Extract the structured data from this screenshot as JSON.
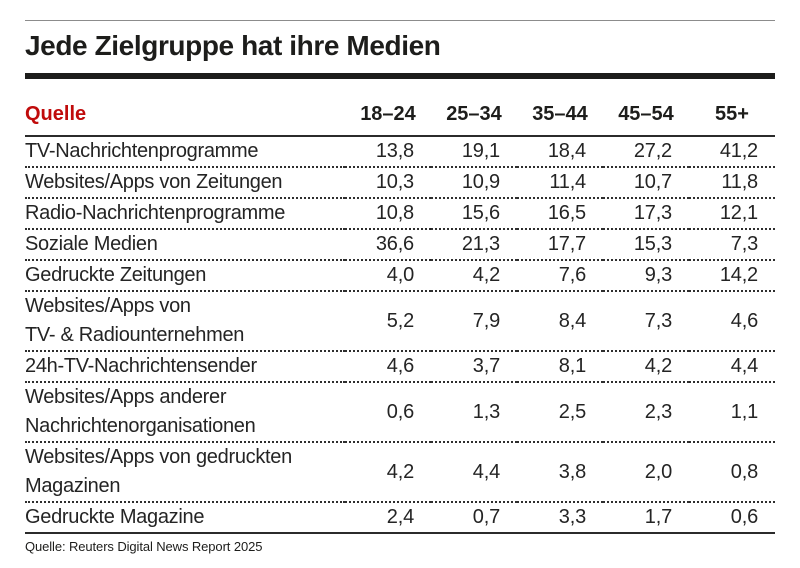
{
  "header": {
    "title": "Jede Zielgruppe hat ihre Medien"
  },
  "table": {
    "source_column_header": "Quelle",
    "age_groups": [
      "18–24",
      "25–34",
      "35–44",
      "45–54",
      "55+"
    ],
    "rows": [
      {
        "label_lines": [
          "TV-Nachrichtenprogramme"
        ],
        "values": [
          "13,8",
          "19,1",
          "18,4",
          "27,2",
          "41,2"
        ]
      },
      {
        "label_lines": [
          "Websites/Apps von Zeitungen"
        ],
        "values": [
          "10,3",
          "10,9",
          "11,4",
          "10,7",
          "11,8"
        ]
      },
      {
        "label_lines": [
          "Radio-Nachrichtenprogramme"
        ],
        "values": [
          "10,8",
          "15,6",
          "16,5",
          "17,3",
          "12,1"
        ]
      },
      {
        "label_lines": [
          "Soziale Medien"
        ],
        "values": [
          "36,6",
          "21,3",
          "17,7",
          "15,3",
          "7,3"
        ]
      },
      {
        "label_lines": [
          "Gedruckte Zeitungen"
        ],
        "values": [
          "4,0",
          "4,2",
          "7,6",
          "9,3",
          "14,2"
        ]
      },
      {
        "label_lines": [
          "Websites/Apps von",
          "TV- & Radiounternehmen"
        ],
        "values": [
          "5,2",
          "7,9",
          "8,4",
          "7,3",
          "4,6"
        ]
      },
      {
        "label_lines": [
          "24h-TV-Nachrichtensender"
        ],
        "values": [
          "4,6",
          "3,7",
          "8,1",
          "4,2",
          "4,4"
        ]
      },
      {
        "label_lines": [
          "Websites/Apps anderer",
          "Nachrichtenorganisationen"
        ],
        "values": [
          "0,6",
          "1,3",
          "2,5",
          "2,3",
          "1,1"
        ]
      },
      {
        "label_lines": [
          "Websites/Apps von gedruckten",
          "Magazinen"
        ],
        "values": [
          "4,2",
          "4,4",
          "3,8",
          "2,0",
          "0,8"
        ]
      },
      {
        "label_lines": [
          "Gedruckte Magazine"
        ],
        "values": [
          "2,4",
          "0,7",
          "3,3",
          "1,7",
          "0,6"
        ]
      }
    ]
  },
  "footer": {
    "source": "Quelle: Reuters Digital News Report 2025"
  },
  "colors": {
    "accent_red": "#c00b0b",
    "title_black": "#1d1d1b",
    "body_text": "#242424",
    "thin_rule_gray": "#8c8c8c"
  },
  "chart_data": {
    "type": "table",
    "title": "Jede Zielgruppe hat ihre Medien",
    "categories": [
      "18–24",
      "25–34",
      "35–44",
      "45–54",
      "55+"
    ],
    "series": [
      {
        "name": "TV-Nachrichtenprogramme",
        "values": [
          13.8,
          19.1,
          18.4,
          27.2,
          41.2
        ]
      },
      {
        "name": "Websites/Apps von Zeitungen",
        "values": [
          10.3,
          10.9,
          11.4,
          10.7,
          11.8
        ]
      },
      {
        "name": "Radio-Nachrichtenprogramme",
        "values": [
          10.8,
          15.6,
          16.5,
          17.3,
          12.1
        ]
      },
      {
        "name": "Soziale Medien",
        "values": [
          36.6,
          21.3,
          17.7,
          15.3,
          7.3
        ]
      },
      {
        "name": "Gedruckte Zeitungen",
        "values": [
          4.0,
          4.2,
          7.6,
          9.3,
          14.2
        ]
      },
      {
        "name": "Websites/Apps von TV- & Radiounternehmen",
        "values": [
          5.2,
          7.9,
          8.4,
          7.3,
          4.6
        ]
      },
      {
        "name": "24h-TV-Nachrichtensender",
        "values": [
          4.6,
          3.7,
          8.1,
          4.2,
          4.4
        ]
      },
      {
        "name": "Websites/Apps anderer Nachrichtenorganisationen",
        "values": [
          0.6,
          1.3,
          2.5,
          2.3,
          1.1
        ]
      },
      {
        "name": "Websites/Apps von gedruckten Magazinen",
        "values": [
          4.2,
          4.4,
          3.8,
          2.0,
          0.8
        ]
      },
      {
        "name": "Gedruckte Magazine",
        "values": [
          2.4,
          0.7,
          3.3,
          1.7,
          0.6
        ]
      }
    ],
    "row_header_label": "Quelle",
    "source": "Quelle: Reuters Digital News Report 2025"
  }
}
